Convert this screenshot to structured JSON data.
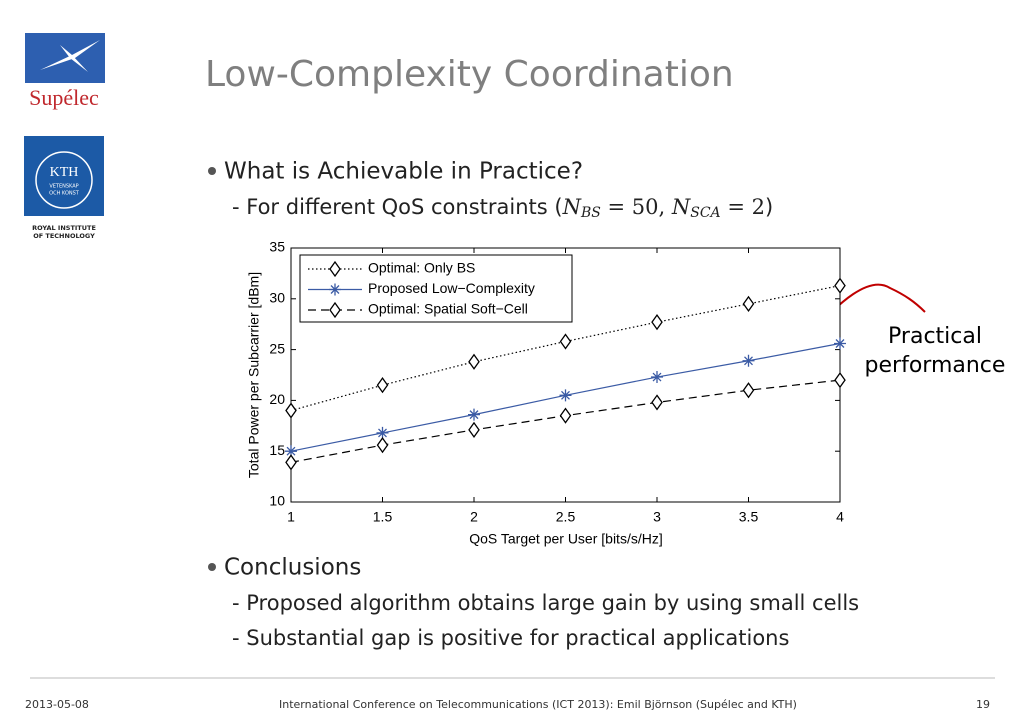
{
  "logos": {
    "supelec": "Supélec",
    "kth": "KTH",
    "kth_motto": [
      "VETENSKAP",
      "OCH KONST"
    ],
    "kth_name": [
      "ROYAL INSTITUTE",
      "OF TECHNOLOGY"
    ]
  },
  "title": "Low-Complexity Coordination",
  "bullets": [
    {
      "text": "What is Achievable in Practice?",
      "sub": [
        "- For different QoS constraints (",
        "N",
        "BS",
        " = 50, ",
        "N",
        "SCA",
        " = 2",
        ")"
      ]
    },
    {
      "text": "Conclusions",
      "sub": [
        "- Proposed algorithm obtains large gain by using small cells",
        "- Substantial gap is positive for practical applications"
      ]
    }
  ],
  "annotation": [
    "Practical",
    "performance"
  ],
  "chart_data": {
    "type": "line",
    "xlabel": "QoS Target per User [bits/s/Hz]",
    "ylabel": "Total Power per Subcarrier [dBm]",
    "x": [
      1,
      1.5,
      2,
      2.5,
      3,
      3.5,
      4
    ],
    "series": [
      {
        "name": "Optimal: Only BS",
        "color": "#000000",
        "linestyle": "dotted",
        "marker": "diamond",
        "values": [
          19,
          21.5,
          23.8,
          25.8,
          27.7,
          29.5,
          31.3
        ]
      },
      {
        "name": "Proposed Low−Complexity",
        "color": "#3b5ba5",
        "linestyle": "solid",
        "marker": "star",
        "values": [
          15,
          16.8,
          18.6,
          20.5,
          22.3,
          23.9,
          25.6
        ]
      },
      {
        "name": "Optimal: Spatial Soft−Cell",
        "color": "#000000",
        "linestyle": "dashed",
        "marker": "diamond",
        "values": [
          13.9,
          15.6,
          17.1,
          18.5,
          19.8,
          21.0,
          22.0
        ]
      }
    ],
    "xlim": [
      1,
      4
    ],
    "ylim": [
      10,
      35
    ],
    "xticks": [
      1,
      1.5,
      2,
      2.5,
      3,
      3.5,
      4
    ],
    "yticks": [
      10,
      15,
      20,
      25,
      30,
      35
    ],
    "grid": false,
    "legend": "top-left"
  },
  "footer": {
    "date": "2013-05-08",
    "event": "International Conference on Telecommunications (ICT 2013): Emil Björnson (Supélec and KTH)",
    "page": "19"
  }
}
